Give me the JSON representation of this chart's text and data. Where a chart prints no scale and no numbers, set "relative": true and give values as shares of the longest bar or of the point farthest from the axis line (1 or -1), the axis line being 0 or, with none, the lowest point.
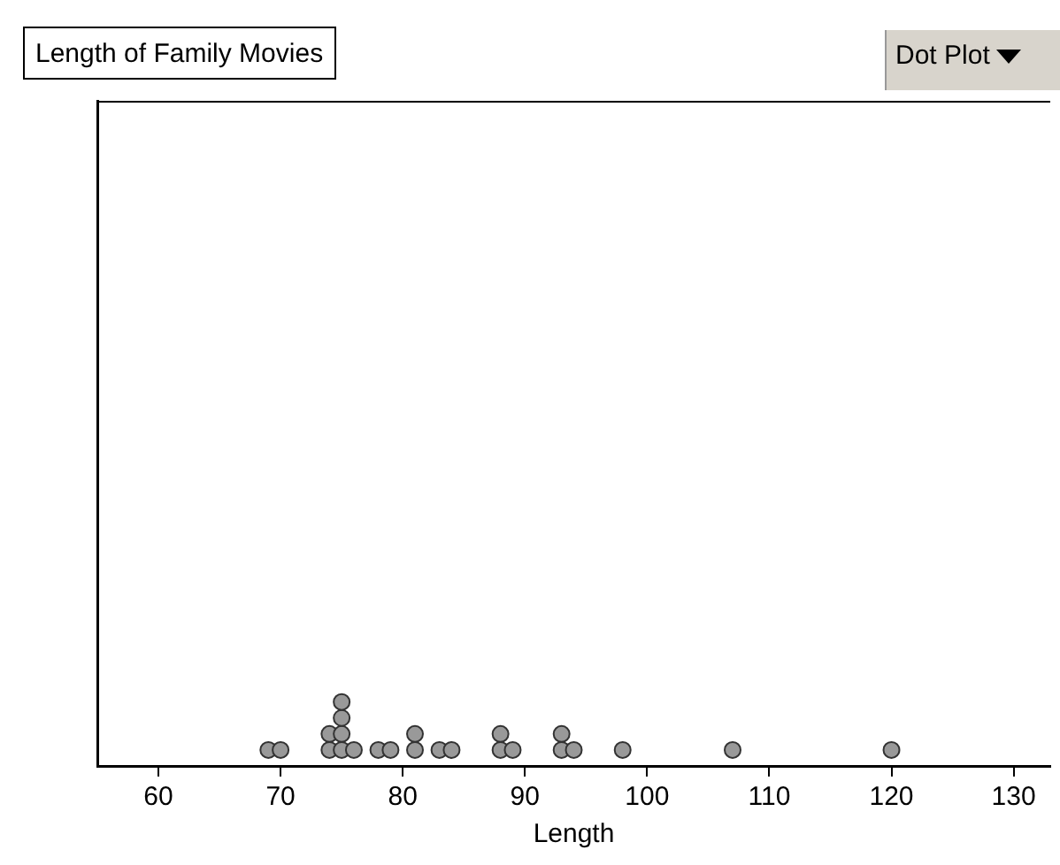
{
  "chart_data": {
    "type": "scatter",
    "title": "Length of Family Movies",
    "xlabel": "Length",
    "annotations": [
      "Dot Plot"
    ],
    "series": [
      {
        "color": "#999999",
        "x": [
          69,
          70,
          74,
          74,
          75,
          75,
          75,
          75,
          76,
          78,
          79,
          81,
          81,
          83,
          84,
          88,
          88,
          89,
          93,
          93,
          94,
          98,
          107,
          120
        ],
        "values": [
          0.25,
          0.25,
          0.25,
          0.5,
          0.25,
          0.5,
          0.75,
          1,
          0.25,
          0.25,
          0.25,
          0.25,
          0.5,
          0.25,
          0.25,
          0.25,
          0.5,
          0.25,
          0.25,
          0.5,
          0.25,
          0.25,
          0.25,
          0.25
        ]
      }
    ],
    "xlim": [
      55,
      133
    ],
    "xticks": [
      60,
      70,
      80,
      90,
      100,
      110,
      120,
      130
    ],
    "relative": true,
    "tick_labels": "x",
    "grid": false,
    "legend": false,
    "marker": "circle"
  }
}
